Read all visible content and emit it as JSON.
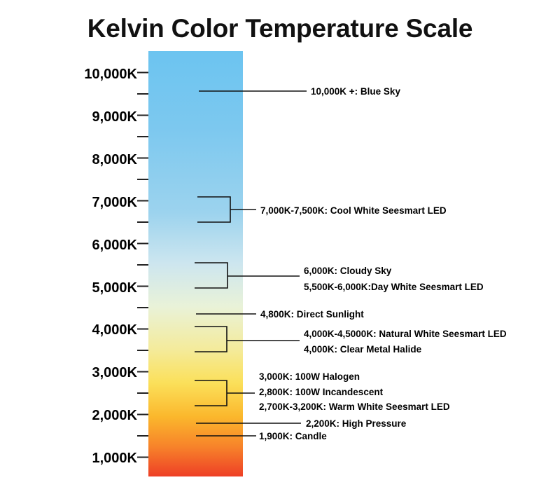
{
  "title": "Kelvin Color Temperature Scale",
  "scale": {
    "labels": [
      "10,000K",
      "9,000K",
      "8,000K",
      "7,000K",
      "6,000K",
      "5,000K",
      "4,000K",
      "3,000K",
      "2,000K",
      "1,000K"
    ],
    "gradient_colors": [
      "#6cc4f0",
      "#7cc8ef",
      "#9cd3ee",
      "#cde6ef",
      "#e9f2d8",
      "#f4eb9c",
      "#fbe05a",
      "#fbb72c",
      "#f7832a",
      "#ee3f26"
    ]
  },
  "annotations": {
    "blue_sky": "10,000K +: Blue Sky",
    "cool_white": "7,000K-7,500K: Cool White Seesmart LED",
    "cloudy_sky": "6,000K: Cloudy Sky",
    "day_white": "5,500K-6,000K:Day White Seesmart LED",
    "direct_sunlight": "4,800K: Direct Sunlight",
    "natural_white": "4,000K-4,5000K: Natural White Seesmart LED",
    "metal_halide": "4,000K: Clear Metal Halide",
    "halogen": "3,000K: 100W Halogen",
    "incandescent": "2,800K: 100W Incandescent",
    "warm_white": "2,700K-3,200K: Warm White Seesmart LED",
    "high_pressure": "2,200K: High Pressure",
    "candle": "1,900K: Candle"
  }
}
